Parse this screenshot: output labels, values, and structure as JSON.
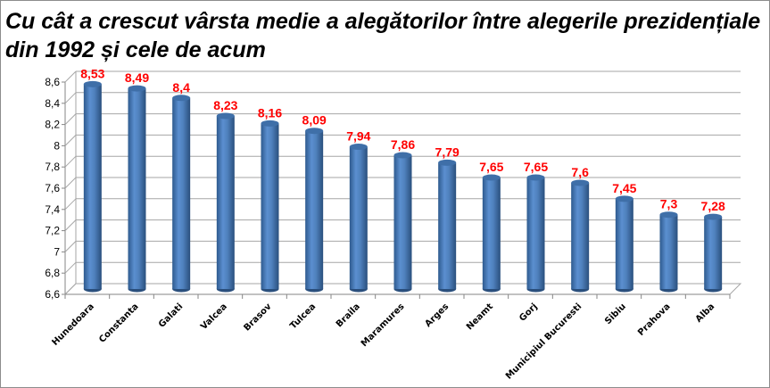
{
  "chart_data": {
    "type": "bar",
    "style": "3d-cylinder",
    "title_lines": [
      "Cu cât a crescut vârsta medie a alegătorilor între alegerile prezidențiale",
      "din 1992 și cele de acum"
    ],
    "categories": [
      "Hunedoara",
      "Constanta",
      "Galati",
      "Valcea",
      "Brasov",
      "Tulcea",
      "Braila",
      "Maramures",
      "Arges",
      "Neamt",
      "Gorj",
      "Municipiul Bucuresti",
      "Sibiu",
      "Prahova",
      "Alba"
    ],
    "values": [
      8.53,
      8.49,
      8.4,
      8.23,
      8.16,
      8.09,
      7.94,
      7.86,
      7.79,
      7.65,
      7.65,
      7.6,
      7.45,
      7.3,
      7.28
    ],
    "data_labels": [
      "8,53",
      "8,49",
      "8,4",
      "8,23",
      "8,16",
      "8,09",
      "7,94",
      "7,86",
      "7,79",
      "7,65",
      "7,65",
      "7,6",
      "7,45",
      "7,3",
      "7,28"
    ],
    "y_ticks": [
      "6,6",
      "6,8",
      "7",
      "7,2",
      "7,4",
      "7,6",
      "7,8",
      "8",
      "8,2",
      "8,4",
      "8,6"
    ],
    "ylim": [
      6.6,
      8.6
    ],
    "grid": true,
    "legend": "none",
    "colors": {
      "bar": "#4f81bd",
      "data_label": "#ff0000",
      "grid": "#a6a6a6"
    }
  }
}
